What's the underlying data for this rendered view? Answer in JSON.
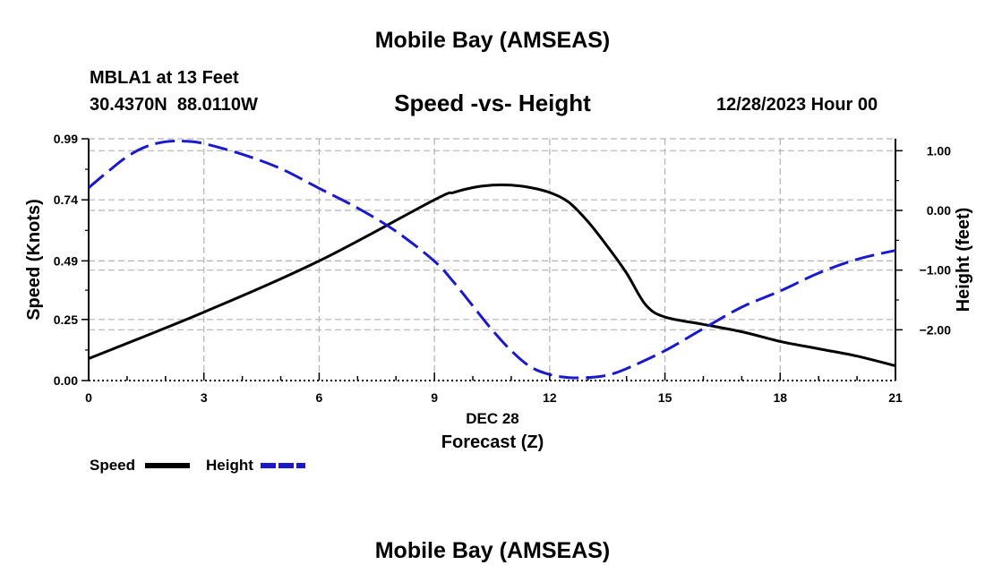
{
  "header": {
    "main_title": "Mobile Bay (AMSEAS)",
    "station_line": "MBLA1 at 13 Feet",
    "coords": "30.4370N  88.0110W",
    "plot_title": "Speed -vs- Height",
    "datetime": "12/28/2023 Hour 00"
  },
  "footer": {
    "main_title": "Mobile Bay (AMSEAS)"
  },
  "colors": {
    "speed": "#000000",
    "height": "#1a1acc",
    "grid": "#b4b4b4"
  },
  "chart_data": {
    "type": "line",
    "title": "Speed -vs- Height",
    "xlabel_date": "DEC 28",
    "xlabel": "Forecast (Z)",
    "ylabel": "Speed (Knots)",
    "y2label": "Height (feet)",
    "xlim": [
      0,
      21
    ],
    "ylim": [
      0,
      0.99
    ],
    "y2lim": [
      -2.85,
      1.2
    ],
    "x_ticks": [
      0,
      3,
      6,
      9,
      12,
      15,
      18,
      21
    ],
    "x_tick_labels": [
      "0",
      "3",
      "6",
      "9",
      "12",
      "15",
      "18",
      "21"
    ],
    "y_ticks": [
      0.0,
      0.25,
      0.49,
      0.74,
      0.99
    ],
    "y_tick_labels": [
      "0.00",
      "0.25",
      "0.49",
      "0.74",
      "0.99"
    ],
    "y2_ticks": [
      1.0,
      0.0,
      -1.0,
      -2.0
    ],
    "y2_tick_labels": [
      "1.00",
      "0.00",
      "−1.00",
      "−2.00"
    ],
    "grid": true,
    "legend": [
      "Speed",
      "Height"
    ],
    "series": [
      {
        "name": "Speed",
        "axis": "left",
        "dash": "solid",
        "x": [
          0,
          3,
          6,
          9,
          9.5,
          10,
          10.5,
          11,
          11.5,
          12,
          12.5,
          13,
          13.5,
          14,
          14.5,
          15,
          16,
          17,
          18,
          19,
          20,
          21
        ],
        "values": [
          0.09,
          0.28,
          0.49,
          0.74,
          0.77,
          0.79,
          0.8,
          0.8,
          0.79,
          0.77,
          0.73,
          0.65,
          0.55,
          0.44,
          0.31,
          0.26,
          0.23,
          0.2,
          0.16,
          0.13,
          0.1,
          0.06
        ]
      },
      {
        "name": "Height",
        "axis": "right",
        "dash": "dashed",
        "x": [
          0,
          0.5,
          1,
          1.5,
          2,
          2.5,
          3,
          4,
          5,
          6,
          7,
          8,
          9,
          9.5,
          10,
          10.5,
          11,
          11.5,
          12,
          12.5,
          13,
          13.5,
          14,
          15,
          16,
          17,
          18,
          19,
          20,
          21
        ],
        "values": [
          0.38,
          0.65,
          0.9,
          1.07,
          1.15,
          1.16,
          1.12,
          0.94,
          0.7,
          0.37,
          0.04,
          -0.35,
          -0.85,
          -1.2,
          -1.6,
          -2.0,
          -2.35,
          -2.62,
          -2.75,
          -2.8,
          -2.8,
          -2.76,
          -2.65,
          -2.35,
          -1.98,
          -1.62,
          -1.35,
          -1.05,
          -0.82,
          -0.67
        ]
      }
    ]
  }
}
